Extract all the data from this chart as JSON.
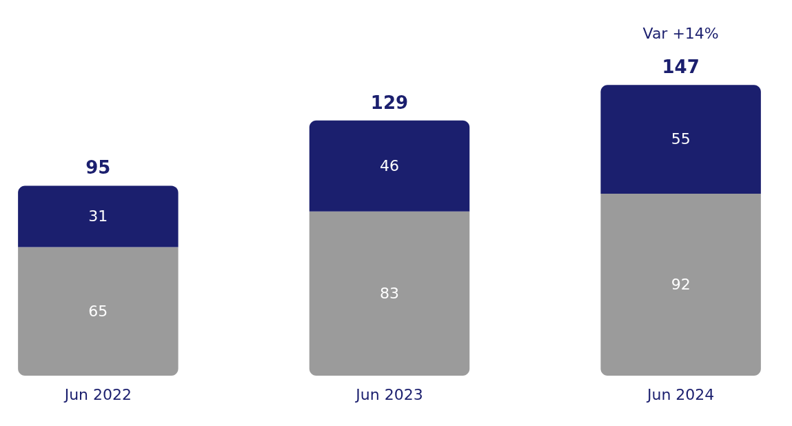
{
  "chart_data": {
    "type": "bar",
    "stacked": true,
    "categories": [
      "Jun 2022",
      "Jun 2023",
      "Jun 2024"
    ],
    "series": [
      {
        "color": "#9b9b9b",
        "values": [
          65,
          83,
          92
        ]
      },
      {
        "color": "#1b1f6e",
        "values": [
          31,
          46,
          55
        ]
      }
    ],
    "data_labels": true,
    "totals": [
      "95",
      "129",
      "147"
    ],
    "annotations": [
      "Var +14%"
    ]
  }
}
